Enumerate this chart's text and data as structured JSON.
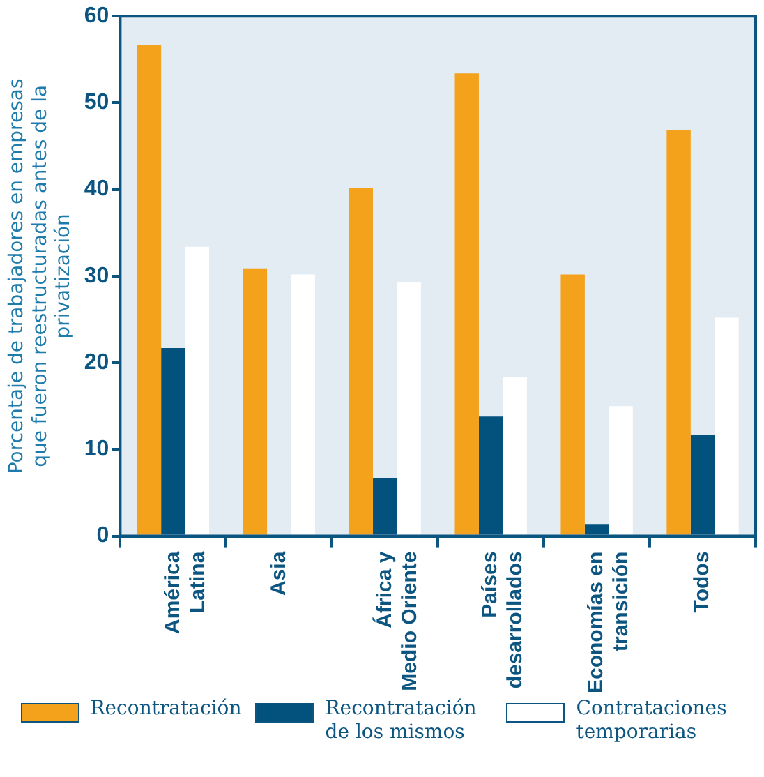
{
  "chart_data": {
    "type": "bar",
    "ylabel": "Porcentaje de trabajadores en empresas que fueron reestructuradas antes de la privatización",
    "categories": [
      "América Latina",
      "Asia",
      "África y Medio Oriente",
      "Países desarrollados",
      "Economías en transición",
      "Todos"
    ],
    "series": [
      {
        "name": "Recontratación",
        "color": "#f4a11c",
        "values": [
          56.7,
          30.9,
          40.2,
          53.4,
          30.2,
          46.9
        ]
      },
      {
        "name": "Recontratación de los mismos",
        "color": "#03527e",
        "values": [
          21.7,
          null,
          6.7,
          13.8,
          1.4,
          11.7
        ]
      },
      {
        "name": "Contrataciones temporarias",
        "color": "#ffffff",
        "values": [
          33.4,
          30.2,
          29.3,
          18.4,
          15.0,
          25.2
        ]
      }
    ],
    "ylim": [
      0,
      60
    ],
    "yticks": [
      0,
      10,
      20,
      30,
      40,
      50,
      60
    ],
    "grid": false,
    "legend": "bottom"
  }
}
